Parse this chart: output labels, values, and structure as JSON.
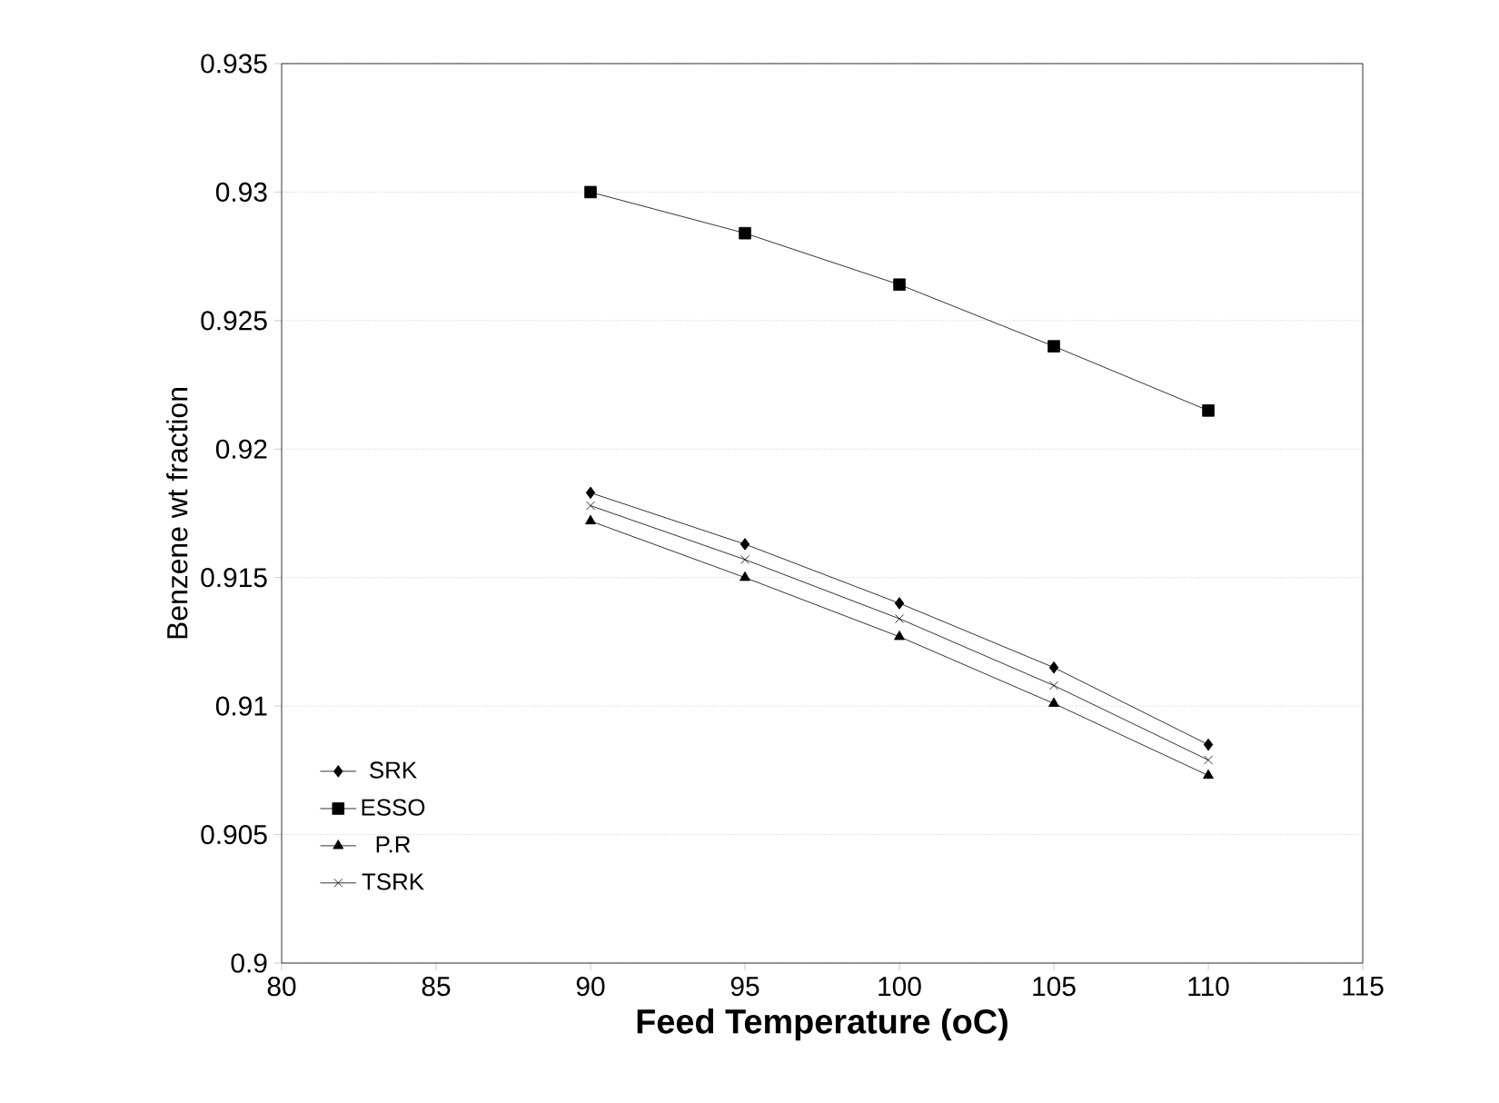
{
  "chart_data": {
    "type": "line",
    "xlabel": "Feed Temperature (oC)",
    "ylabel": "Benzene wt fraction",
    "x": [
      90,
      95,
      100,
      105,
      110
    ],
    "series": [
      {
        "name": "SRK",
        "color": "#000000",
        "marker": "diamond",
        "values": [
          0.9183,
          0.9163,
          0.914,
          0.9115,
          0.9085
        ]
      },
      {
        "name": "ESSO",
        "color": "#000000",
        "marker": "square",
        "values": [
          0.93,
          0.9284,
          0.9264,
          0.924,
          0.9215
        ]
      },
      {
        "name": "P.R",
        "color": "#000000",
        "marker": "triangle",
        "values": [
          0.9172,
          0.915,
          0.9127,
          0.9101,
          0.9073
        ]
      },
      {
        "name": "TSRK",
        "color": "#000000",
        "marker": "cross",
        "values": [
          0.9178,
          0.9157,
          0.9134,
          0.9108,
          0.9079
        ]
      }
    ],
    "xlim": [
      80,
      115
    ],
    "xticks": [
      80,
      85,
      90,
      95,
      100,
      105,
      110,
      115
    ],
    "ylim": [
      0.9,
      0.935
    ],
    "yticks": [
      0.9,
      0.905,
      0.91,
      0.915,
      0.92,
      0.925,
      0.93,
      0.935
    ],
    "grid": "y",
    "legend": "left",
    "line_style": "solid"
  }
}
